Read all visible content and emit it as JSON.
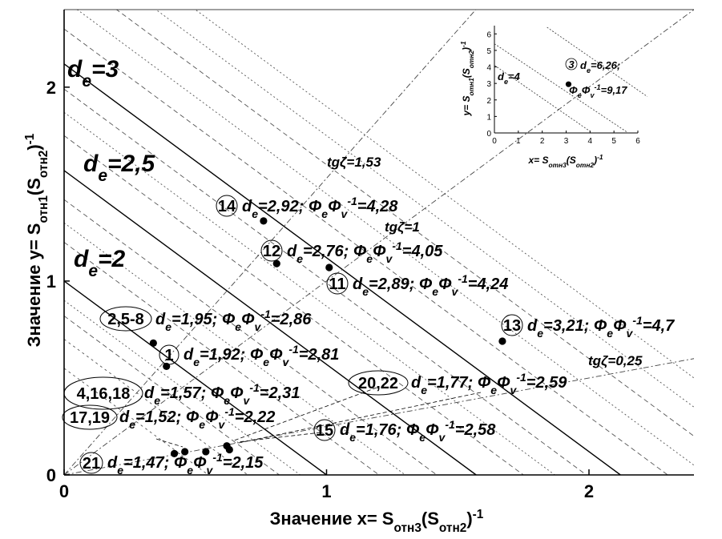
{
  "chart_data": {
    "type": "scatter",
    "main": {
      "xlabel": "Значение x= S_отн3(S_отн2)^-1",
      "ylabel": "Значение y= S_отн1(S_отн2)^-1",
      "xlim": [
        0,
        2.4
      ],
      "ylim": [
        0,
        2.4
      ],
      "xticks": [
        "0",
        "1",
        "2"
      ],
      "yticks": [
        "0",
        "1",
        "2"
      ],
      "de_lines": [
        {
          "label": "d_e=2",
          "value": 2,
          "intercept": 1.0
        },
        {
          "label": "d_e=2,5",
          "value": 2.5,
          "intercept": 1.57
        },
        {
          "label": "d_e=3",
          "value": 3,
          "intercept": 2.12
        }
      ],
      "tg_lines": [
        {
          "label": "tgζ=1,53",
          "slope": 1.53
        },
        {
          "label": "tgζ=1",
          "slope": 1
        },
        {
          "label": "tgζ=0,25",
          "slope": 0.25
        }
      ],
      "points": [
        {
          "id": "14",
          "x": 0.76,
          "y": 1.31,
          "de": "2,92",
          "ff": "4,28"
        },
        {
          "id": "12",
          "x": 0.81,
          "y": 1.09,
          "de": "2,76",
          "ff": "4,05"
        },
        {
          "id": "11",
          "x": 1.01,
          "y": 1.07,
          "de": "2,89",
          "ff": "4,24"
        },
        {
          "id": "13",
          "x": 1.67,
          "y": 0.69,
          "de": "3,21",
          "ff": "4,7"
        },
        {
          "id": "2,5-8",
          "x": 0.34,
          "y": 0.68,
          "de": "1,95",
          "ff": "2,86"
        },
        {
          "id": "1",
          "x": 0.39,
          "y": 0.56,
          "de": "1,92",
          "ff": "2,81"
        },
        {
          "id": "20,22",
          "x": 0.62,
          "y": 0.15,
          "de": "1,77",
          "ff": "2,59"
        },
        {
          "id": "4,16,18",
          "x": 0.46,
          "y": 0.12,
          "de": "1,57",
          "ff": "2,31"
        },
        {
          "id": "17,19",
          "x": 0.42,
          "y": 0.11,
          "de": "1,52",
          "ff": "2,22"
        },
        {
          "id": "15",
          "x": 0.63,
          "y": 0.13,
          "de": "1,76",
          "ff": "2,58"
        },
        {
          "id": "21",
          "x": 0.54,
          "y": 0.12,
          "de": "1,47",
          "ff": "2,15"
        }
      ]
    },
    "inset": {
      "xlabel": "x= S_отн3(S_отн2)^-1",
      "ylabel": "y= S_отн1(S_отн2)^-1",
      "xlim": [
        0,
        6
      ],
      "ylim": [
        0,
        6.5
      ],
      "xticks": [
        "0",
        "1",
        "2",
        "3",
        "4",
        "5",
        "6"
      ],
      "yticks": [
        "0",
        "1",
        "2",
        "3",
        "4",
        "5",
        "6"
      ],
      "de_line": {
        "label": "d_e=4"
      },
      "point": {
        "id": "3",
        "x": 3.1,
        "y": 2.95,
        "de": "6,26",
        "ff": "9,17"
      }
    }
  }
}
